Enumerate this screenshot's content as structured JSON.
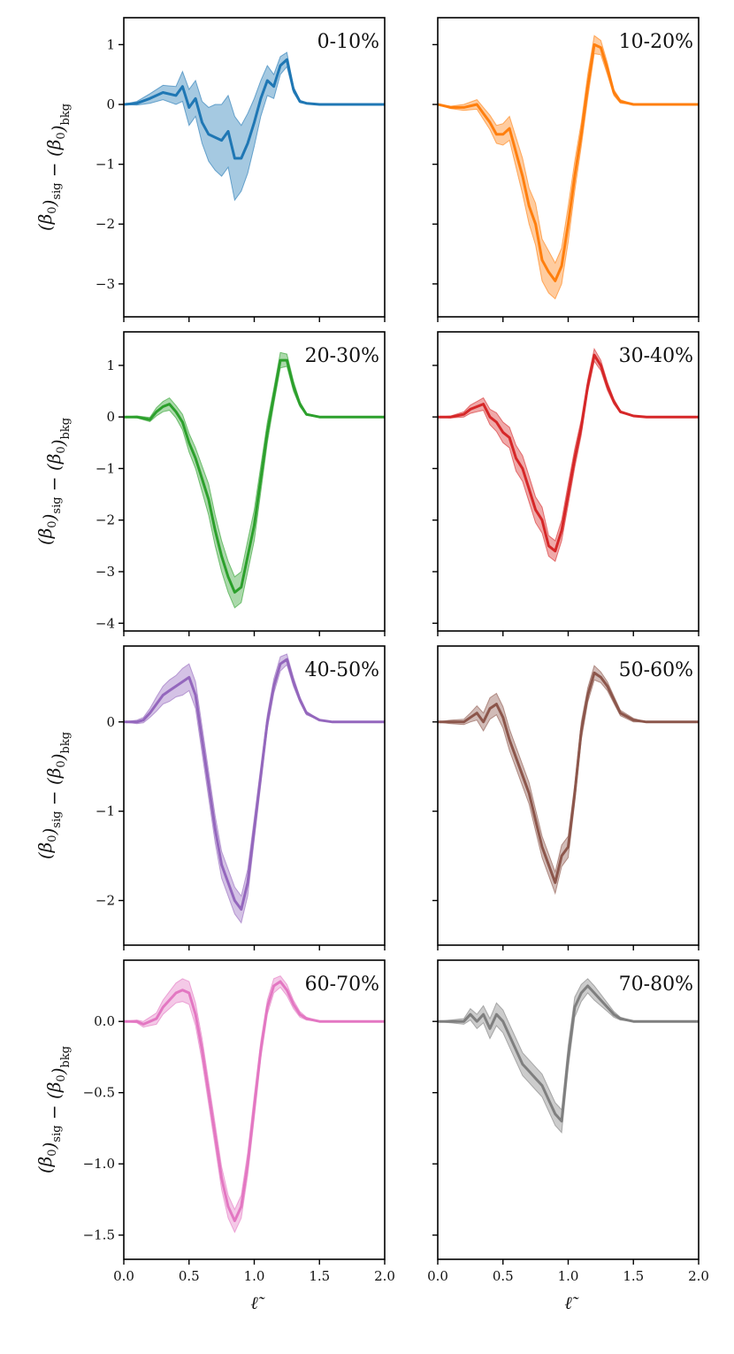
{
  "figure": {
    "ylabel_parts": {
      "open": "(β",
      "sub0": "0",
      "close": ")",
      "sub_sig": "sig",
      "minus": " − ",
      "sub_bkg": "bkg"
    },
    "xlabel": "ℓ̃"
  },
  "chart_data": [
    {
      "type": "area",
      "panel_label": "0-10%",
      "color": "#1f77b4",
      "xlim": [
        0,
        2
      ],
      "ylim": [
        -3.55,
        1.45
      ],
      "xticks": [
        0,
        0.5,
        1,
        1.5,
        2
      ],
      "xtick_labels": [
        "0.0",
        "0.5",
        "1.0",
        "1.5",
        "2.0"
      ],
      "yticks": [
        1,
        0,
        -1,
        -2,
        -3
      ],
      "ytick_labels": [
        "1",
        "0",
        "−1",
        "−2",
        "−3"
      ],
      "x": [
        0,
        0.1,
        0.2,
        0.3,
        0.4,
        0.45,
        0.5,
        0.55,
        0.6,
        0.65,
        0.7,
        0.75,
        0.8,
        0.85,
        0.9,
        0.95,
        1.0,
        1.05,
        1.1,
        1.15,
        1.2,
        1.25,
        1.3,
        1.35,
        1.4,
        1.5,
        1.6,
        1.8,
        2.0
      ],
      "y": [
        0,
        0.02,
        0.1,
        0.2,
        0.15,
        0.3,
        -0.05,
        0.1,
        -0.3,
        -0.5,
        -0.55,
        -0.6,
        -0.45,
        -0.9,
        -0.9,
        -0.65,
        -0.3,
        0.1,
        0.4,
        0.3,
        0.65,
        0.75,
        0.25,
        0.05,
        0.02,
        0.0,
        0.0,
        0.0,
        0.0
      ],
      "band": [
        0,
        0.03,
        0.08,
        0.12,
        0.15,
        0.25,
        0.3,
        0.3,
        0.35,
        0.45,
        0.55,
        0.6,
        0.6,
        0.7,
        0.55,
        0.5,
        0.4,
        0.3,
        0.25,
        0.2,
        0.15,
        0.12,
        0.05,
        0.02,
        0.01,
        0,
        0,
        0,
        0
      ]
    },
    {
      "type": "area",
      "panel_label": "10-20%",
      "color": "#ff7f0e",
      "xlim": [
        0,
        2
      ],
      "ylim": [
        -3.55,
        1.45
      ],
      "xticks": [
        0,
        0.5,
        1,
        1.5,
        2
      ],
      "xtick_labels": [
        "0.0",
        "0.5",
        "1.0",
        "1.5",
        "2.0"
      ],
      "yticks": [
        1,
        0,
        -1,
        -2,
        -3
      ],
      "ytick_labels": [
        "1",
        "0",
        "−1",
        "−2",
        "−3"
      ],
      "x": [
        0,
        0.1,
        0.2,
        0.3,
        0.35,
        0.4,
        0.45,
        0.5,
        0.55,
        0.6,
        0.65,
        0.7,
        0.75,
        0.8,
        0.85,
        0.9,
        0.95,
        1.0,
        1.05,
        1.1,
        1.15,
        1.2,
        1.25,
        1.3,
        1.35,
        1.4,
        1.5,
        1.6,
        1.8,
        2.0
      ],
      "y": [
        0,
        -0.05,
        -0.05,
        0.0,
        -0.15,
        -0.3,
        -0.5,
        -0.5,
        -0.4,
        -0.8,
        -1.2,
        -1.7,
        -2.0,
        -2.6,
        -2.8,
        -2.95,
        -2.7,
        -2.0,
        -1.2,
        -0.5,
        0.3,
        1.0,
        0.95,
        0.6,
        0.2,
        0.05,
        0.0,
        0.0,
        0.0,
        0.0
      ],
      "band": [
        0,
        0.02,
        0.05,
        0.08,
        0.1,
        0.12,
        0.15,
        0.18,
        0.2,
        0.25,
        0.3,
        0.3,
        0.35,
        0.35,
        0.35,
        0.3,
        0.3,
        0.3,
        0.25,
        0.2,
        0.2,
        0.15,
        0.12,
        0.1,
        0.05,
        0.03,
        0,
        0,
        0,
        0
      ]
    },
    {
      "type": "area",
      "panel_label": "20-30%",
      "color": "#2ca02c",
      "xlim": [
        0,
        2
      ],
      "ylim": [
        -4.15,
        1.65
      ],
      "xticks": [
        0,
        0.5,
        1,
        1.5,
        2
      ],
      "xtick_labels": [
        "0.0",
        "0.5",
        "1.0",
        "1.5",
        "2.0"
      ],
      "yticks": [
        1,
        0,
        -1,
        -2,
        -3,
        -4
      ],
      "ytick_labels": [
        "1",
        "0",
        "−1",
        "−2",
        "−3",
        "−4"
      ],
      "x": [
        0,
        0.1,
        0.2,
        0.25,
        0.3,
        0.35,
        0.4,
        0.45,
        0.5,
        0.55,
        0.6,
        0.65,
        0.7,
        0.75,
        0.8,
        0.85,
        0.9,
        0.95,
        1.0,
        1.05,
        1.1,
        1.15,
        1.2,
        1.25,
        1.3,
        1.35,
        1.4,
        1.5,
        1.6,
        1.8,
        2.0
      ],
      "y": [
        0,
        0.0,
        -0.05,
        0.1,
        0.2,
        0.25,
        0.1,
        -0.1,
        -0.5,
        -0.8,
        -1.2,
        -1.6,
        -2.2,
        -2.7,
        -3.1,
        -3.4,
        -3.3,
        -2.7,
        -2.1,
        -1.2,
        -0.3,
        0.4,
        1.1,
        1.1,
        0.6,
        0.25,
        0.05,
        0.0,
        0.0,
        0.0,
        0.0
      ],
      "band": [
        0,
        0.02,
        0.04,
        0.08,
        0.1,
        0.12,
        0.12,
        0.15,
        0.18,
        0.2,
        0.25,
        0.3,
        0.3,
        0.3,
        0.3,
        0.3,
        0.3,
        0.3,
        0.3,
        0.25,
        0.2,
        0.15,
        0.15,
        0.12,
        0.1,
        0.05,
        0.02,
        0,
        0,
        0,
        0
      ]
    },
    {
      "type": "area",
      "panel_label": "30-40%",
      "color": "#d62728",
      "xlim": [
        0,
        2
      ],
      "ylim": [
        -4.15,
        1.65
      ],
      "xticks": [
        0,
        0.5,
        1,
        1.5,
        2
      ],
      "xtick_labels": [
        "0.0",
        "0.5",
        "1.0",
        "1.5",
        "2.0"
      ],
      "yticks": [
        1,
        0,
        -1,
        -2,
        -3,
        -4
      ],
      "ytick_labels": [
        "1",
        "0",
        "−1",
        "−2",
        "−3",
        "−4"
      ],
      "x": [
        0,
        0.1,
        0.2,
        0.25,
        0.3,
        0.35,
        0.4,
        0.45,
        0.5,
        0.55,
        0.6,
        0.65,
        0.7,
        0.75,
        0.8,
        0.85,
        0.9,
        0.95,
        1.0,
        1.05,
        1.1,
        1.15,
        1.2,
        1.25,
        1.3,
        1.35,
        1.4,
        1.5,
        1.6,
        1.8,
        2.0
      ],
      "y": [
        0,
        0.0,
        0.05,
        0.15,
        0.2,
        0.25,
        0.0,
        -0.1,
        -0.3,
        -0.4,
        -0.8,
        -1.0,
        -1.4,
        -1.8,
        -2.0,
        -2.5,
        -2.6,
        -2.2,
        -1.5,
        -0.8,
        -0.2,
        0.6,
        1.2,
        1.0,
        0.6,
        0.3,
        0.1,
        0.02,
        0.0,
        0.0,
        0.0
      ],
      "band": [
        0,
        0.02,
        0.05,
        0.08,
        0.1,
        0.12,
        0.15,
        0.18,
        0.2,
        0.2,
        0.25,
        0.25,
        0.25,
        0.25,
        0.25,
        0.2,
        0.2,
        0.2,
        0.2,
        0.18,
        0.15,
        0.12,
        0.12,
        0.1,
        0.08,
        0.05,
        0.02,
        0,
        0,
        0,
        0
      ]
    },
    {
      "type": "area",
      "panel_label": "40-50%",
      "color": "#9467bd",
      "xlim": [
        0,
        2
      ],
      "ylim": [
        -2.5,
        0.85
      ],
      "xticks": [
        0,
        0.5,
        1,
        1.5,
        2
      ],
      "xtick_labels": [
        "0.0",
        "0.5",
        "1.0",
        "1.5",
        "2.0"
      ],
      "yticks": [
        0,
        -1,
        -2
      ],
      "ytick_labels": [
        "0",
        "−1",
        "−2"
      ],
      "x": [
        0,
        0.1,
        0.15,
        0.2,
        0.25,
        0.3,
        0.35,
        0.4,
        0.45,
        0.5,
        0.55,
        0.6,
        0.65,
        0.7,
        0.75,
        0.8,
        0.85,
        0.9,
        0.95,
        1.0,
        1.05,
        1.1,
        1.15,
        1.2,
        1.25,
        1.3,
        1.35,
        1.4,
        1.5,
        1.6,
        1.8,
        2.0
      ],
      "y": [
        0,
        0.0,
        0.02,
        0.1,
        0.2,
        0.3,
        0.35,
        0.4,
        0.45,
        0.5,
        0.3,
        -0.2,
        -0.7,
        -1.2,
        -1.6,
        -1.8,
        -2.0,
        -2.1,
        -1.8,
        -1.2,
        -0.6,
        0.0,
        0.4,
        0.65,
        0.7,
        0.45,
        0.25,
        0.1,
        0.02,
        0.0,
        0.0,
        0.0
      ],
      "band": [
        0,
        0.02,
        0.03,
        0.05,
        0.08,
        0.1,
        0.12,
        0.12,
        0.15,
        0.15,
        0.15,
        0.15,
        0.15,
        0.15,
        0.15,
        0.15,
        0.15,
        0.15,
        0.15,
        0.12,
        0.1,
        0.08,
        0.08,
        0.08,
        0.06,
        0.05,
        0.03,
        0.02,
        0,
        0,
        0,
        0
      ]
    },
    {
      "type": "area",
      "panel_label": "50-60%",
      "color": "#8c564b",
      "xlim": [
        0,
        2
      ],
      "ylim": [
        -2.5,
        0.85
      ],
      "xticks": [
        0,
        0.5,
        1,
        1.5,
        2
      ],
      "xtick_labels": [
        "0.0",
        "0.5",
        "1.0",
        "1.5",
        "2.0"
      ],
      "yticks": [
        0,
        -1,
        -2
      ],
      "ytick_labels": [
        "0",
        "−1",
        "−2"
      ],
      "x": [
        0,
        0.1,
        0.2,
        0.25,
        0.3,
        0.35,
        0.4,
        0.45,
        0.5,
        0.55,
        0.6,
        0.65,
        0.7,
        0.75,
        0.8,
        0.85,
        0.9,
        0.95,
        1.0,
        1.05,
        1.1,
        1.15,
        1.2,
        1.25,
        1.3,
        1.35,
        1.4,
        1.5,
        1.6,
        1.8,
        2.0
      ],
      "y": [
        0,
        0.0,
        0.0,
        0.05,
        0.1,
        0.0,
        0.15,
        0.2,
        0.05,
        -0.2,
        -0.4,
        -0.6,
        -0.8,
        -1.1,
        -1.4,
        -1.6,
        -1.8,
        -1.5,
        -1.4,
        -0.8,
        -0.1,
        0.3,
        0.55,
        0.5,
        0.4,
        0.25,
        0.1,
        0.02,
        0.0,
        0.0,
        0.0
      ],
      "band": [
        0,
        0.02,
        0.03,
        0.05,
        0.08,
        0.1,
        0.12,
        0.12,
        0.12,
        0.12,
        0.12,
        0.12,
        0.12,
        0.12,
        0.12,
        0.12,
        0.12,
        0.12,
        0.12,
        0.1,
        0.1,
        0.08,
        0.08,
        0.06,
        0.05,
        0.04,
        0.03,
        0.02,
        0,
        0,
        0
      ]
    },
    {
      "type": "area",
      "panel_label": "60-70%",
      "color": "#e377c2",
      "xlim": [
        0,
        2
      ],
      "ylim": [
        -1.67,
        0.43
      ],
      "xticks": [
        0,
        0.5,
        1,
        1.5,
        2
      ],
      "xtick_labels": [
        "0.0",
        "0.5",
        "1.0",
        "1.5",
        "2.0"
      ],
      "yticks": [
        0,
        -0.5,
        -1,
        -1.5
      ],
      "ytick_labels": [
        "0.0",
        "−0.5",
        "−1.0",
        "−1.5"
      ],
      "x": [
        0,
        0.1,
        0.15,
        0.2,
        0.25,
        0.3,
        0.35,
        0.4,
        0.45,
        0.5,
        0.55,
        0.6,
        0.65,
        0.7,
        0.75,
        0.8,
        0.85,
        0.9,
        0.95,
        1.0,
        1.05,
        1.1,
        1.15,
        1.2,
        1.25,
        1.3,
        1.35,
        1.4,
        1.5,
        1.6,
        1.8,
        2.0
      ],
      "y": [
        0,
        0.0,
        -0.02,
        0.0,
        0.02,
        0.1,
        0.15,
        0.2,
        0.22,
        0.2,
        0.05,
        -0.2,
        -0.5,
        -0.8,
        -1.1,
        -1.3,
        -1.4,
        -1.3,
        -1.0,
        -0.6,
        -0.2,
        0.1,
        0.25,
        0.28,
        0.22,
        0.12,
        0.05,
        0.02,
        0.0,
        0.0,
        0.0,
        0.0
      ],
      "band": [
        0,
        0.01,
        0.02,
        0.03,
        0.04,
        0.05,
        0.06,
        0.07,
        0.08,
        0.08,
        0.08,
        0.08,
        0.08,
        0.08,
        0.08,
        0.08,
        0.08,
        0.08,
        0.08,
        0.08,
        0.06,
        0.05,
        0.05,
        0.04,
        0.04,
        0.03,
        0.02,
        0.01,
        0,
        0,
        0,
        0
      ]
    },
    {
      "type": "area",
      "panel_label": "70-80%",
      "color": "#7f7f7f",
      "xlim": [
        0,
        2
      ],
      "ylim": [
        -1.67,
        0.43
      ],
      "xticks": [
        0,
        0.5,
        1,
        1.5,
        2
      ],
      "xtick_labels": [
        "0.0",
        "0.5",
        "1.0",
        "1.5",
        "2.0"
      ],
      "yticks": [
        0,
        -0.5,
        -1,
        -1.5
      ],
      "ytick_labels": [
        "0.0",
        "−0.5",
        "−1.0",
        "−1.5"
      ],
      "x": [
        0,
        0.1,
        0.2,
        0.25,
        0.3,
        0.35,
        0.4,
        0.45,
        0.5,
        0.55,
        0.6,
        0.65,
        0.7,
        0.75,
        0.8,
        0.85,
        0.9,
        0.95,
        1.0,
        1.05,
        1.1,
        1.15,
        1.2,
        1.25,
        1.3,
        1.35,
        1.4,
        1.5,
        1.6,
        1.8,
        2.0
      ],
      "y": [
        0,
        0.0,
        0.0,
        0.05,
        0.0,
        0.05,
        -0.05,
        0.05,
        0.0,
        -0.1,
        -0.2,
        -0.3,
        -0.35,
        -0.4,
        -0.45,
        -0.55,
        -0.65,
        -0.7,
        -0.25,
        0.1,
        0.2,
        0.25,
        0.2,
        0.15,
        0.1,
        0.05,
        0.02,
        0.0,
        0.0,
        0.0,
        0.0
      ],
      "band": [
        0,
        0.01,
        0.02,
        0.04,
        0.05,
        0.06,
        0.07,
        0.08,
        0.08,
        0.08,
        0.08,
        0.08,
        0.08,
        0.08,
        0.08,
        0.08,
        0.08,
        0.08,
        0.08,
        0.07,
        0.06,
        0.05,
        0.05,
        0.04,
        0.03,
        0.02,
        0.01,
        0,
        0,
        0,
        0
      ]
    }
  ]
}
